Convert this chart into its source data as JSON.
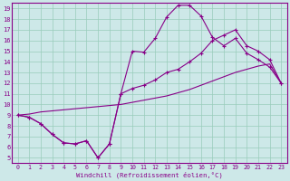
{
  "bg_color": "#cde8e8",
  "line_color": "#880088",
  "grid_color": "#99ccbb",
  "xlabel": "Windchill (Refroidissement éolien,°C)",
  "xlim": [
    -0.5,
    23.5
  ],
  "ylim": [
    4.5,
    19.5
  ],
  "xticks": [
    0,
    1,
    2,
    3,
    4,
    5,
    6,
    7,
    8,
    9,
    10,
    11,
    12,
    13,
    14,
    15,
    16,
    17,
    18,
    19,
    20,
    21,
    22,
    23
  ],
  "yticks": [
    5,
    6,
    7,
    8,
    9,
    10,
    11,
    12,
    13,
    14,
    15,
    16,
    17,
    18,
    19
  ],
  "curve1_x": [
    0,
    1,
    2,
    3,
    4,
    5,
    6,
    7,
    8,
    9,
    10,
    11,
    12,
    13,
    14,
    15,
    16,
    17,
    18,
    19,
    20,
    21,
    22,
    23
  ],
  "curve1_y": [
    9.0,
    8.8,
    8.2,
    7.2,
    6.4,
    6.3,
    6.6,
    5.0,
    6.3,
    11.0,
    15.0,
    14.9,
    16.2,
    18.2,
    19.3,
    19.3,
    18.3,
    16.3,
    15.5,
    16.2,
    14.8,
    14.2,
    13.5,
    12.0
  ],
  "curve2_x": [
    0,
    1,
    2,
    3,
    4,
    5,
    6,
    7,
    8,
    9,
    10,
    11,
    12,
    13,
    14,
    15,
    16,
    17,
    18,
    19,
    20,
    21,
    22,
    23
  ],
  "curve2_y": [
    9.0,
    9.1,
    9.3,
    9.4,
    9.5,
    9.6,
    9.7,
    9.8,
    9.9,
    10.0,
    10.2,
    10.4,
    10.6,
    10.8,
    11.1,
    11.4,
    11.8,
    12.2,
    12.6,
    13.0,
    13.3,
    13.6,
    13.8,
    12.0
  ],
  "curve3_x": [
    0,
    1,
    2,
    3,
    4,
    5,
    6,
    7,
    8,
    9,
    10,
    11,
    12,
    13,
    14,
    15,
    16,
    17,
    18,
    19,
    20,
    21,
    22,
    23
  ],
  "curve3_y": [
    9.0,
    8.8,
    8.2,
    7.2,
    6.4,
    6.3,
    6.6,
    5.0,
    6.3,
    11.0,
    11.5,
    11.8,
    12.3,
    13.0,
    13.3,
    14.0,
    14.8,
    16.0,
    16.5,
    17.0,
    15.5,
    15.0,
    14.2,
    12.0
  ]
}
